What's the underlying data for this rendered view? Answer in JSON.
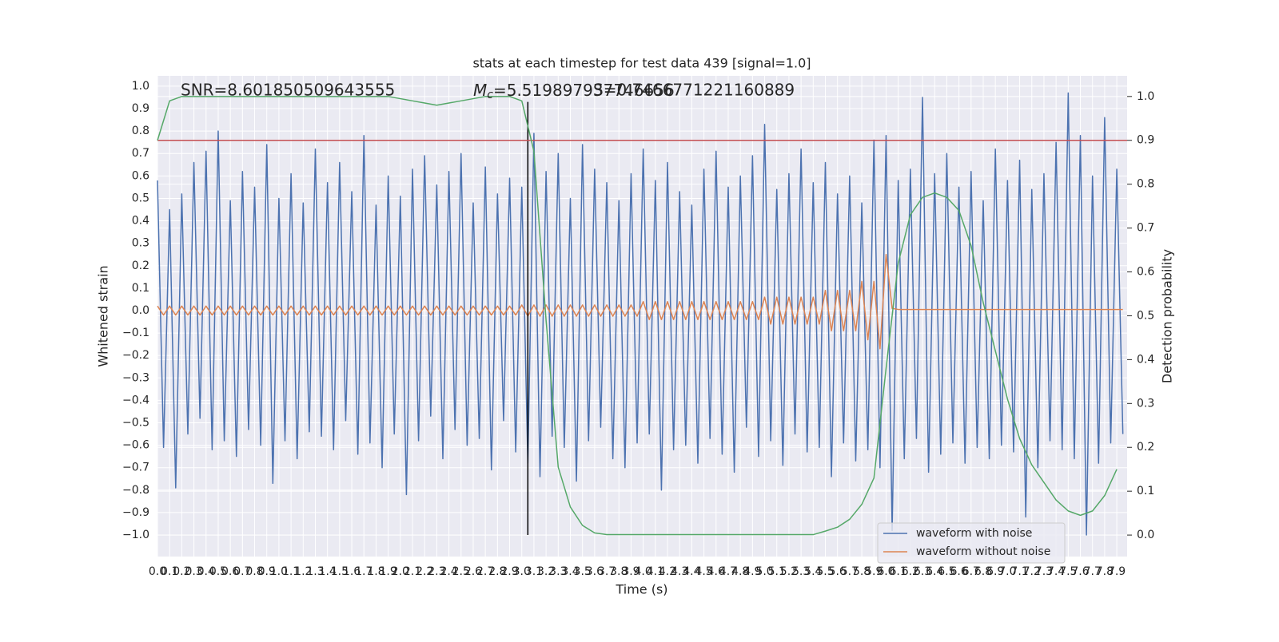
{
  "chart_data": {
    "type": "line",
    "title": "stats at each timestep for test data 439 [signal=1.0]",
    "xlabel": "Time (s)",
    "ylabel": "Whitened strain",
    "y2label": "Detection probability",
    "annotations": {
      "snr_text": "SNR=8.601850509643555",
      "mc_symbol": "M",
      "mc_subscript": "c",
      "mc_text": "=5.519897937746656",
      "s_text": "S=0.7466771221160889"
    },
    "grid": true,
    "legend": "lower right",
    "xlim": [
      0,
      7.985
    ],
    "ylim": [
      -1.096,
      1.046
    ],
    "y2lim": [
      -0.049,
      1.047
    ],
    "xticks": [
      {
        "value": 0,
        "label": "0.0"
      },
      0.1,
      0.2,
      0.3,
      0.4,
      0.5,
      0.6,
      0.7,
      0.8,
      0.9,
      {
        "value": 1,
        "label": "1.0"
      },
      1.1,
      1.2,
      1.3,
      1.4,
      1.5,
      1.6,
      1.7,
      1.8,
      1.9,
      {
        "value": 2,
        "label": "2.0"
      },
      2.1,
      2.2,
      2.3,
      2.4,
      2.5,
      2.6,
      2.7,
      2.8,
      2.9,
      {
        "value": 3,
        "label": "3.0"
      },
      3.1,
      3.2,
      3.3,
      3.4,
      3.5,
      3.6,
      3.7,
      3.8,
      3.9,
      {
        "value": 4,
        "label": "4.0"
      },
      4.1,
      4.2,
      4.3,
      4.4,
      4.5,
      4.6,
      4.7,
      4.8,
      4.9,
      {
        "value": 5,
        "label": "5.0"
      },
      5.1,
      5.2,
      5.3,
      5.4,
      5.5,
      5.6,
      5.7,
      5.8,
      5.9,
      {
        "value": 6,
        "label": "6.0"
      },
      6.1,
      6.2,
      6.3,
      6.4,
      6.5,
      6.6,
      6.7,
      6.8,
      6.9,
      {
        "value": 7,
        "label": "7.0"
      },
      7.1,
      7.2,
      7.3,
      7.4,
      7.5,
      7.6,
      7.7,
      7.8,
      7.9
    ],
    "yticks": [
      {
        "value": -1,
        "label": "−1.0"
      },
      {
        "value": -0.9,
        "label": "−0.9"
      },
      {
        "value": -0.8,
        "label": "−0.8"
      },
      {
        "value": -0.7,
        "label": "−0.7"
      },
      {
        "value": -0.6,
        "label": "−0.6"
      },
      {
        "value": -0.5,
        "label": "−0.5"
      },
      {
        "value": -0.4,
        "label": "−0.4"
      },
      {
        "value": -0.3,
        "label": "−0.3"
      },
      {
        "value": -0.2,
        "label": "−0.2"
      },
      {
        "value": -0.1,
        "label": "−0.1"
      },
      {
        "value": 0,
        "label": "0.0"
      },
      0.1,
      0.2,
      0.3,
      0.4,
      0.5,
      0.6,
      0.7,
      0.8,
      0.9,
      {
        "value": 1,
        "label": "1.0"
      }
    ],
    "y2ticks": [
      {
        "value": 0,
        "label": "0.0"
      },
      0.1,
      0.2,
      0.3,
      0.4,
      0.5,
      0.6,
      0.7,
      0.8,
      0.9,
      {
        "value": 1,
        "label": "1.0"
      }
    ],
    "x": [
      0,
      0.05,
      0.1,
      0.15,
      0.2,
      0.25,
      0.3,
      0.35,
      0.4,
      0.45,
      0.5,
      0.55,
      0.6,
      0.65,
      0.7,
      0.75,
      0.8,
      0.85,
      0.9,
      0.95,
      1,
      1.05,
      1.1,
      1.15,
      1.2,
      1.25,
      1.3,
      1.35,
      1.4,
      1.45,
      1.5,
      1.55,
      1.6,
      1.65,
      1.7,
      1.75,
      1.8,
      1.85,
      1.9,
      1.95,
      2,
      2.05,
      2.1,
      2.15,
      2.2,
      2.25,
      2.3,
      2.35,
      2.4,
      2.45,
      2.5,
      2.55,
      2.6,
      2.65,
      2.7,
      2.75,
      2.8,
      2.85,
      2.9,
      2.95,
      3,
      3.05,
      3.1,
      3.15,
      3.2,
      3.25,
      3.3,
      3.35,
      3.4,
      3.45,
      3.5,
      3.55,
      3.6,
      3.65,
      3.7,
      3.75,
      3.8,
      3.85,
      3.9,
      3.95,
      4,
      4.05,
      4.1,
      4.15,
      4.2,
      4.25,
      4.3,
      4.35,
      4.4,
      4.45,
      4.5,
      4.55,
      4.6,
      4.65,
      4.7,
      4.75,
      4.8,
      4.85,
      4.9,
      4.95,
      5,
      5.05,
      5.1,
      5.15,
      5.2,
      5.25,
      5.3,
      5.35,
      5.4,
      5.45,
      5.5,
      5.55,
      5.6,
      5.65,
      5.7,
      5.75,
      5.8,
      5.85,
      5.9,
      5.95,
      6,
      6.05,
      6.1,
      6.15,
      6.2,
      6.25,
      6.3,
      6.35,
      6.4,
      6.45,
      6.5,
      6.55,
      6.6,
      6.65,
      6.7,
      6.75,
      6.8,
      6.85,
      6.9,
      6.95,
      7,
      7.05,
      7.1,
      7.15,
      7.2,
      7.25,
      7.3,
      7.35,
      7.4,
      7.45,
      7.5,
      7.55,
      7.6,
      7.65,
      7.7,
      7.75,
      7.8,
      7.85,
      7.9,
      7.95
    ],
    "series": [
      {
        "name": "waveform with noise",
        "color": "#4c72b0",
        "values": [
          0.58,
          -0.61,
          0.45,
          -0.79,
          0.52,
          -0.55,
          0.66,
          -0.48,
          0.71,
          -0.62,
          0.8,
          -0.58,
          0.49,
          -0.65,
          0.62,
          -0.53,
          0.55,
          -0.6,
          0.74,
          -0.77,
          0.5,
          -0.58,
          0.61,
          -0.66,
          0.48,
          -0.54,
          0.72,
          -0.56,
          0.57,
          -0.62,
          0.66,
          -0.49,
          0.53,
          -0.64,
          0.78,
          -0.59,
          0.47,
          -0.7,
          0.6,
          -0.55,
          0.51,
          -0.82,
          0.63,
          -0.58,
          0.69,
          -0.47,
          0.56,
          -0.66,
          0.62,
          -0.53,
          0.7,
          -0.6,
          0.48,
          -0.57,
          0.64,
          -0.71,
          0.52,
          -0.49,
          0.59,
          -0.63,
          0.55,
          -0.68,
          0.79,
          -0.74,
          0.62,
          -0.56,
          0.7,
          -0.61,
          0.5,
          -0.76,
          0.74,
          -0.58,
          0.63,
          -0.52,
          0.57,
          -0.66,
          0.49,
          -0.7,
          0.61,
          -0.59,
          0.72,
          -0.55,
          0.58,
          -0.8,
          0.66,
          -0.62,
          0.53,
          -0.6,
          0.47,
          -0.68,
          0.63,
          -0.57,
          0.71,
          -0.64,
          0.55,
          -0.72,
          0.6,
          -0.52,
          0.69,
          -0.65,
          0.83,
          -0.58,
          0.54,
          -0.69,
          0.61,
          -0.55,
          0.72,
          -0.63,
          0.57,
          -0.61,
          0.66,
          -0.74,
          0.52,
          -0.59,
          0.6,
          -0.67,
          0.48,
          -0.62,
          0.76,
          -0.7,
          0.78,
          -0.98,
          0.58,
          -0.66,
          0.63,
          -0.57,
          0.95,
          -0.72,
          0.61,
          -0.64,
          0.7,
          -0.59,
          0.55,
          -0.68,
          0.62,
          -0.61,
          0.49,
          -0.66,
          0.72,
          -0.6,
          0.58,
          -0.63,
          0.67,
          -0.92,
          0.54,
          -0.7,
          0.61,
          -0.58,
          0.75,
          -0.62,
          0.97,
          -0.66,
          0.78,
          -1.0,
          0.6,
          -0.68,
          0.86,
          -0.59,
          0.63,
          -0.55
        ]
      },
      {
        "name": "waveform without noise",
        "color": "#dd8452",
        "values": [
          0.02,
          -0.02,
          0.02,
          -0.02,
          0.02,
          -0.02,
          0.02,
          -0.02,
          0.02,
          -0.02,
          0.02,
          -0.02,
          0.02,
          -0.02,
          0.02,
          -0.02,
          0.02,
          -0.02,
          0.02,
          -0.02,
          0.02,
          -0.02,
          0.02,
          -0.02,
          0.02,
          -0.02,
          0.02,
          -0.02,
          0.02,
          -0.02,
          0.02,
          -0.02,
          0.02,
          -0.02,
          0.02,
          -0.02,
          0.02,
          -0.02,
          0.02,
          -0.02,
          0.02,
          -0.02,
          0.02,
          -0.02,
          0.02,
          -0.02,
          0.02,
          -0.02,
          0.02,
          -0.02,
          0.02,
          -0.02,
          0.02,
          -0.02,
          0.02,
          -0.02,
          0.02,
          -0.02,
          0.02,
          -0.02,
          0.025,
          -0.025,
          0.025,
          -0.025,
          0.025,
          -0.025,
          0.025,
          -0.025,
          0.025,
          -0.025,
          0.025,
          -0.025,
          0.025,
          -0.025,
          0.025,
          -0.025,
          0.025,
          -0.025,
          0.025,
          -0.025,
          0.04,
          -0.04,
          0.04,
          -0.04,
          0.04,
          -0.04,
          0.04,
          -0.04,
          0.04,
          -0.04,
          0.04,
          -0.04,
          0.04,
          -0.04,
          0.04,
          -0.04,
          0.04,
          -0.04,
          0.04,
          -0.04,
          0.06,
          -0.06,
          0.06,
          -0.06,
          0.06,
          -0.06,
          0.06,
          -0.06,
          0.06,
          -0.06,
          0.09,
          -0.09,
          0.09,
          -0.09,
          0.09,
          -0.09,
          0.13,
          -0.13,
          0.13,
          -0.17,
          0.25,
          0.01,
          0.005,
          0.005,
          0.005,
          0.005,
          0.005,
          0.005,
          0.005,
          0.005,
          0.005,
          0.005,
          0.005,
          0.005,
          0.005,
          0.005,
          0.005,
          0.005,
          0.005,
          0.005,
          0.005,
          0.005,
          0.005,
          0.005,
          0.005,
          0.005,
          0.005,
          0.005,
          0.005,
          0.005,
          0.005,
          0.005,
          0.005,
          0.005,
          0.005,
          0.005,
          0.005,
          0.005,
          0.005,
          0.005
        ]
      },
      {
        "color": "#55a868",
        "axis": "y2",
        "x": [
          0,
          0.1,
          0.2,
          0.3,
          0.4,
          0.5,
          0.6,
          0.7,
          0.8,
          0.9,
          1,
          1.1,
          1.2,
          1.3,
          1.4,
          1.5,
          1.6,
          1.7,
          1.8,
          1.9,
          2,
          2.1,
          2.2,
          2.3,
          2.4,
          2.5,
          2.6,
          2.7,
          2.8,
          2.9,
          3,
          3.1,
          3.2,
          3.3,
          3.4,
          3.5,
          3.6,
          3.7,
          3.8,
          3.9,
          4,
          4.1,
          4.2,
          4.3,
          4.4,
          4.5,
          4.6,
          4.7,
          4.8,
          4.9,
          5,
          5.1,
          5.2,
          5.3,
          5.4,
          5.5,
          5.6,
          5.7,
          5.8,
          5.9,
          6,
          6.1,
          6.2,
          6.3,
          6.4,
          6.5,
          6.6,
          6.7,
          6.8,
          6.9,
          7,
          7.1,
          7.2,
          7.3,
          7.4,
          7.5,
          7.6,
          7.7,
          7.8,
          7.9
        ],
        "values": [
          0.9,
          0.99,
          1,
          1,
          1,
          1,
          1,
          1,
          1,
          1,
          1,
          1,
          1,
          1,
          1,
          1,
          1,
          1,
          1,
          1,
          0.995,
          0.99,
          0.985,
          0.98,
          0.985,
          0.99,
          0.995,
          1,
          1,
          1,
          0.99,
          0.875,
          0.49,
          0.155,
          0.064,
          0.022,
          0.005,
          0.001,
          0.001,
          0.001,
          0.001,
          0.001,
          0.001,
          0.001,
          0.001,
          0.001,
          0.001,
          0.001,
          0.001,
          0.001,
          0.001,
          0.001,
          0.001,
          0.001,
          0.001,
          0.009,
          0.018,
          0.036,
          0.07,
          0.13,
          0.38,
          0.62,
          0.73,
          0.77,
          0.78,
          0.77,
          0.74,
          0.66,
          0.53,
          0.42,
          0.31,
          0.22,
          0.16,
          0.12,
          0.08,
          0.055,
          0.045,
          0.055,
          0.09,
          0.15
        ]
      }
    ],
    "threshold": {
      "value": 0.9,
      "axis": "y2",
      "color": "#c44e52"
    },
    "vline": {
      "x": 3.05,
      "ylim": [
        -1,
        0.93
      ],
      "color": "#000000"
    }
  }
}
